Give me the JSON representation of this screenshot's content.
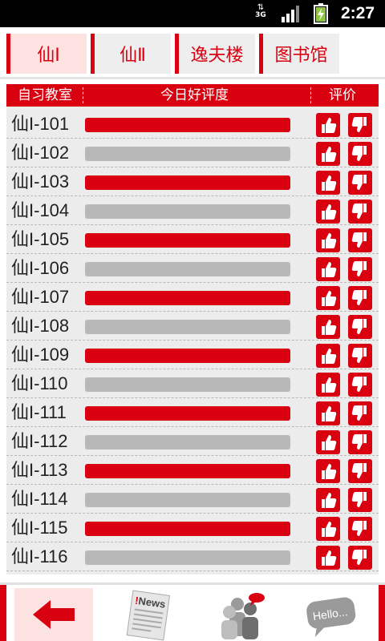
{
  "status_bar": {
    "network": "3G",
    "time": "2:27",
    "icons": [
      "data-arrows-icon",
      "signal-icon",
      "battery-charging-icon"
    ]
  },
  "tabs": [
    {
      "label": "仙Ⅰ",
      "active": true
    },
    {
      "label": "仙Ⅱ",
      "active": false
    },
    {
      "label": "逸夫楼",
      "active": false
    },
    {
      "label": "图书馆",
      "active": false
    }
  ],
  "table": {
    "headers": {
      "room": "自习教室",
      "rating_bar": "今日好评度",
      "vote": "评价"
    },
    "rows": [
      {
        "room": "仙I-101",
        "status": "good"
      },
      {
        "room": "仙I-102",
        "status": "bad"
      },
      {
        "room": "仙I-103",
        "status": "good"
      },
      {
        "room": "仙I-104",
        "status": "bad"
      },
      {
        "room": "仙I-105",
        "status": "good"
      },
      {
        "room": "仙I-106",
        "status": "bad"
      },
      {
        "room": "仙I-107",
        "status": "good"
      },
      {
        "room": "仙I-108",
        "status": "bad"
      },
      {
        "room": "仙I-109",
        "status": "good"
      },
      {
        "room": "仙I-110",
        "status": "bad"
      },
      {
        "room": "仙I-111",
        "status": "good"
      },
      {
        "room": "仙I-112",
        "status": "bad"
      },
      {
        "room": "仙I-113",
        "status": "good"
      },
      {
        "room": "仙I-114",
        "status": "bad"
      },
      {
        "room": "仙I-115",
        "status": "good"
      },
      {
        "room": "仙I-116",
        "status": "bad"
      }
    ]
  },
  "bottom_nav": {
    "items": [
      {
        "icon": "back-arrow-icon",
        "active": true
      },
      {
        "icon": "news-icon",
        "label": "!News",
        "active": false
      },
      {
        "icon": "people-chat-icon",
        "active": false
      },
      {
        "icon": "hello-bubble-icon",
        "label": "Hello...",
        "active": false
      }
    ]
  },
  "colors": {
    "accent": "#d9000f",
    "bar_inactive": "#b8b8b8",
    "panel_bg": "#ececec",
    "active_tab_bg": "#fde2e2"
  }
}
